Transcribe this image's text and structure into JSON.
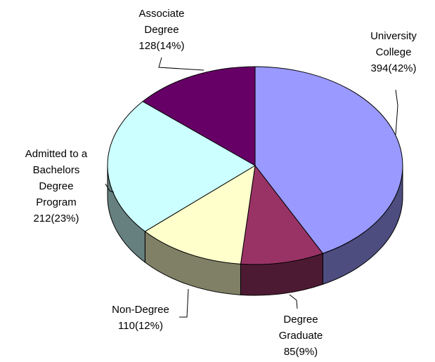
{
  "chart_data": {
    "type": "pie",
    "categories": [
      "University College",
      "Degree Graduate",
      "Non-Degree",
      "Admitted to a Bachelors Degree Program",
      "Associate Degree"
    ],
    "values": [
      394,
      85,
      110,
      212,
      128
    ],
    "value_labels": [
      "394(42%)",
      "85(9%)",
      "110(12%)",
      "212(23%)",
      "128(14%)"
    ],
    "colors": [
      "#9999ff",
      "#993366",
      "#ffffcc",
      "#ccffff",
      "#660066"
    ]
  }
}
